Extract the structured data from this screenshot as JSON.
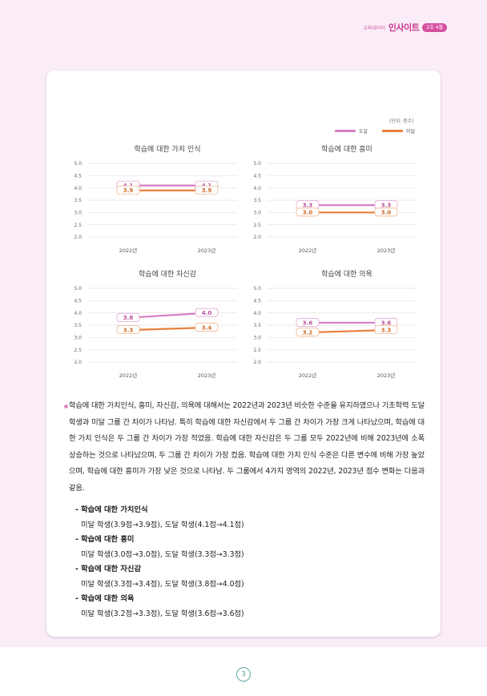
{
  "header": {
    "brand_small": "교육데이터",
    "brand_big": "인사이트",
    "badge": "2호 4월"
  },
  "unit_label": "(단위: 점수)",
  "legend": [
    {
      "label": "도달",
      "color": "#d67fc3"
    },
    {
      "label": "미달",
      "color": "#e8813b"
    }
  ],
  "chart_data": [
    {
      "type": "line",
      "title": "학습에 대한 가치 인식",
      "categories": [
        "2022년",
        "2023년"
      ],
      "yticks": [
        "5.0",
        "4.5",
        "4.0",
        "3.5",
        "3.0",
        "2.5",
        "2.0"
      ],
      "ylim": [
        2.0,
        5.0
      ],
      "series": [
        {
          "name": "도달",
          "values": [
            4.1,
            4.1
          ],
          "labels": [
            "4.1",
            "4.1"
          ]
        },
        {
          "name": "미달",
          "values": [
            3.9,
            3.9
          ],
          "labels": [
            "3.9",
            "3.9"
          ]
        }
      ]
    },
    {
      "type": "line",
      "title": "학습에 대한 흥미",
      "categories": [
        "2022년",
        "2023년"
      ],
      "yticks": [
        "5.0",
        "4.5",
        "4.0",
        "3.5",
        "3.0",
        "2.5",
        "2.0"
      ],
      "ylim": [
        2.0,
        5.0
      ],
      "series": [
        {
          "name": "도달",
          "values": [
            3.3,
            3.3
          ],
          "labels": [
            "3.3",
            "3.3"
          ]
        },
        {
          "name": "미달",
          "values": [
            3.0,
            3.0
          ],
          "labels": [
            "3.0",
            "3.0"
          ]
        }
      ]
    },
    {
      "type": "line",
      "title": "학습에 대한 자신감",
      "categories": [
        "2022년",
        "2023년"
      ],
      "yticks": [
        "5.0",
        "4.5",
        "4.0",
        "3.5",
        "3.0",
        "2.5",
        "2.0"
      ],
      "ylim": [
        2.0,
        5.0
      ],
      "series": [
        {
          "name": "도달",
          "values": [
            3.8,
            4.0
          ],
          "labels": [
            "3.8",
            "4.0"
          ]
        },
        {
          "name": "미달",
          "values": [
            3.3,
            3.4
          ],
          "labels": [
            "3.3",
            "3.4"
          ]
        }
      ]
    },
    {
      "type": "line",
      "title": "학습에 대한 의욕",
      "categories": [
        "2022년",
        "2023년"
      ],
      "yticks": [
        "5.0",
        "4.5",
        "4.0",
        "3.5",
        "3.0",
        "2.5",
        "2.0"
      ],
      "ylim": [
        2.0,
        5.0
      ],
      "series": [
        {
          "name": "도달",
          "values": [
            3.6,
            3.6
          ],
          "labels": [
            "3.6",
            "3.6"
          ]
        },
        {
          "name": "미달",
          "values": [
            3.2,
            3.3
          ],
          "labels": [
            "3.2",
            "3.3"
          ]
        }
      ]
    }
  ],
  "summary": "학습에 대한 가치인식, 흥미, 자신감, 의욕에 대해서는 2022년과 2023년 비슷한 수준을 유지하였으나 기초학력 도달 학생과 미달 그룹 간 차이가 나타남. 특히 학습에 대한 자신감에서 두 그룹 간 차이가 가장 크게 나타났으며, 학습에 대한 가치 인식은 두 그룹 간 차이가 가장 적었음. 학습에 대한 자신감은 두 그룹 모두 2022년에 비해 2023년에 소폭 상승하는 것으로 나타났으며, 두 그룹 간 차이가 가장 컸음. 학습에 대한 가치 인식 수준은 다른 변수에 비해 가장 높았으며, 학습에 대한 흥미가 가장 낮은 것으로 나타남. 두 그룹에서 4가지 영역의 2022년, 2023년 점수 변화는 다음과 같음.",
  "details": [
    {
      "label": "- 학습에 대한 가치인식",
      "value": "미달 학생(3.9점→3.9점), 도달 학생(4.1점→4.1점)"
    },
    {
      "label": "- 학습에 대한 흥미",
      "value": "미달 학생(3.0점→3.0점), 도달 학생(3.3점→3.3점)"
    },
    {
      "label": "- 학습에 대한 자신감",
      "value": "미달 학생(3.3점→3.4점), 도달 학생(3.8점→4.0점)"
    },
    {
      "label": "- 학습에 대한 의욕",
      "value": "미달 학생(3.2점→3.3점), 도달 학생(3.6점→3.6점)"
    }
  ],
  "page_number": "3"
}
